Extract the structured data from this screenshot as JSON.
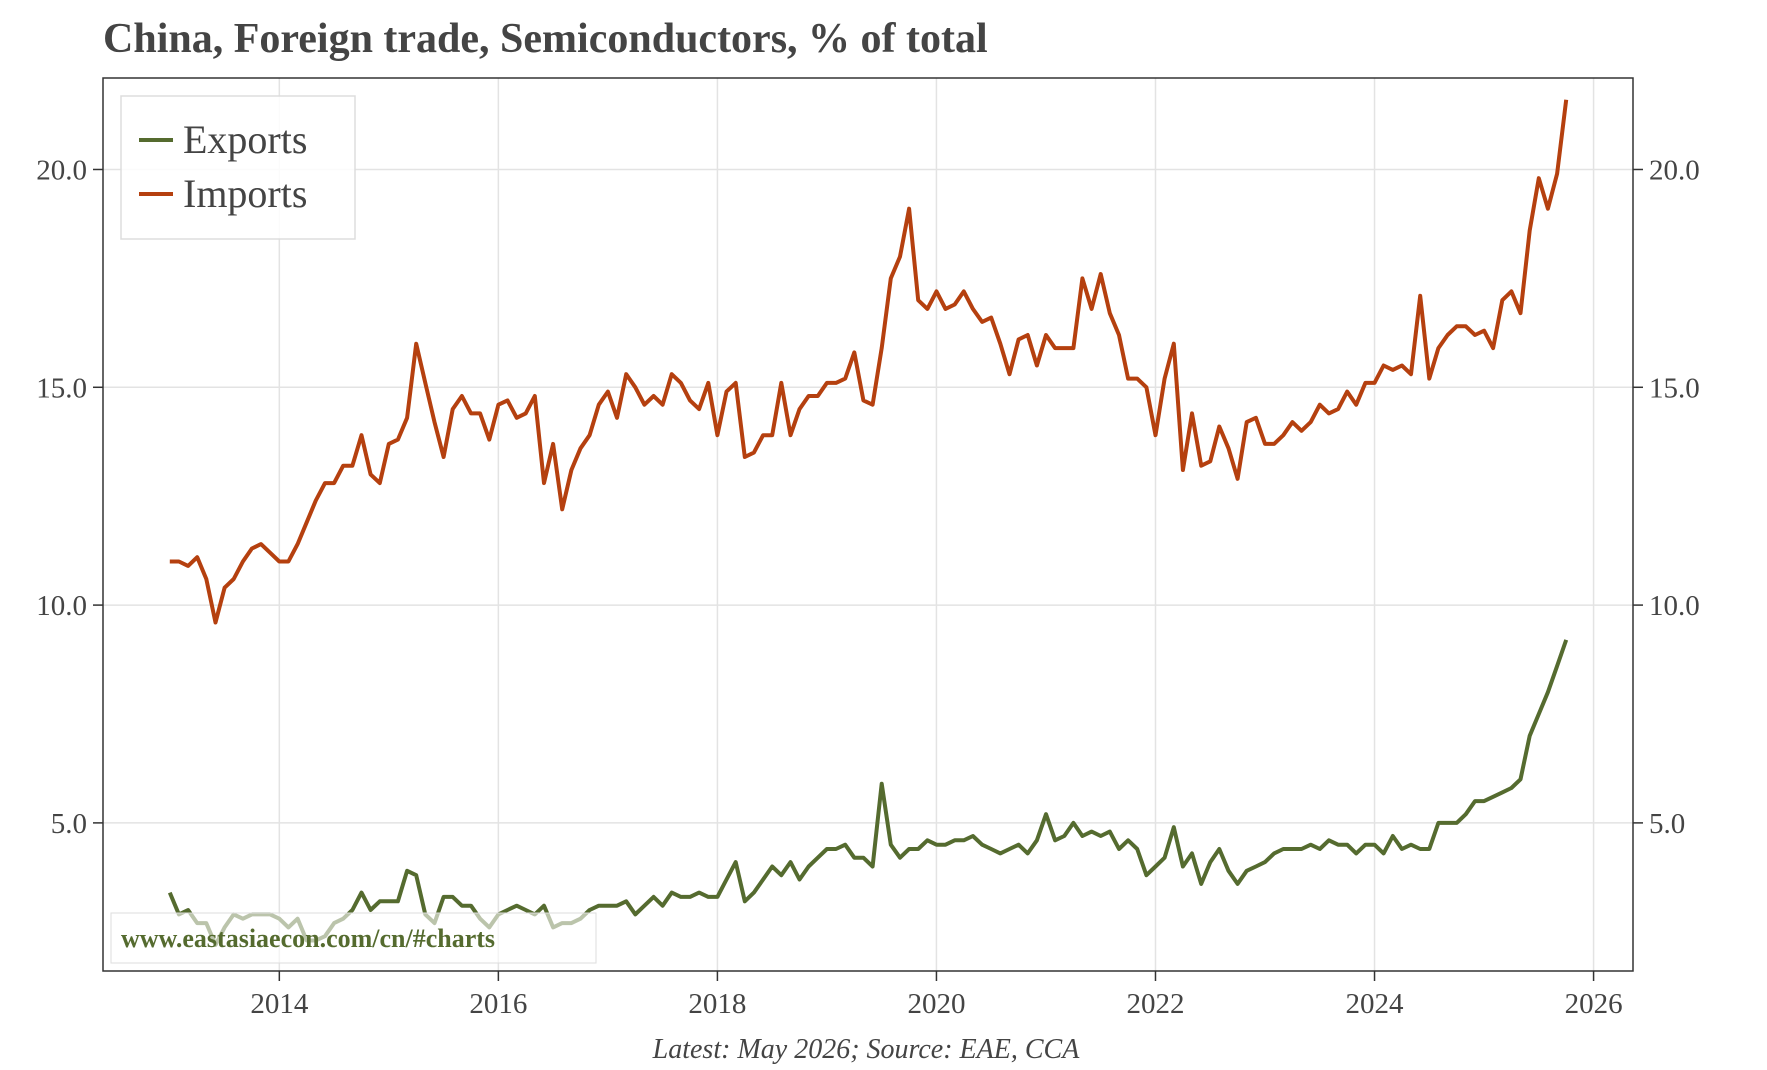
{
  "chart_data": {
    "type": "line",
    "title": "China, Foreign trade, Semiconductors, % of total",
    "footnote": "Latest: May 2026; Source: EAE, CCA",
    "watermark": "www.eastasiaecon.com/cn/#charts",
    "legend": "upper left",
    "grid": true,
    "xlim": [
      2012.39,
      2026.36
    ],
    "xticks": [
      2014,
      2016,
      2018,
      2020,
      2022,
      2024,
      2026
    ],
    "ylim": [
      1.6,
      22.1
    ],
    "yticks": [
      {
        "value": 5,
        "label": "5.0"
      },
      {
        "value": 10,
        "label": "10.0"
      },
      {
        "value": 15,
        "label": "15.0"
      },
      {
        "value": 20,
        "label": "20.0"
      }
    ],
    "y2lim": [
      1.6,
      22.1
    ],
    "y2ticks": [
      {
        "value": 5,
        "label": "5.0"
      },
      {
        "value": 10,
        "label": "10.0"
      },
      {
        "value": 15,
        "label": "15.0"
      },
      {
        "value": 20,
        "label": "20.0"
      }
    ],
    "x": [
      2013,
      2013.083,
      2013.167,
      2013.25,
      2013.333,
      2013.417,
      2013.5,
      2013.583,
      2013.667,
      2013.75,
      2013.833,
      2013.917,
      2014,
      2014.083,
      2014.167,
      2014.25,
      2014.333,
      2014.417,
      2014.5,
      2014.583,
      2014.667,
      2014.75,
      2014.833,
      2014.917,
      2015,
      2015.083,
      2015.167,
      2015.25,
      2015.333,
      2015.417,
      2015.5,
      2015.583,
      2015.667,
      2015.75,
      2015.833,
      2015.917,
      2016,
      2016.083,
      2016.167,
      2016.25,
      2016.333,
      2016.417,
      2016.5,
      2016.583,
      2016.667,
      2016.75,
      2016.833,
      2016.917,
      2017,
      2017.083,
      2017.167,
      2017.25,
      2017.333,
      2017.417,
      2017.5,
      2017.583,
      2017.667,
      2017.75,
      2017.833,
      2017.917,
      2018,
      2018.083,
      2018.167,
      2018.25,
      2018.333,
      2018.417,
      2018.5,
      2018.583,
      2018.667,
      2018.75,
      2018.833,
      2018.917,
      2019,
      2019.083,
      2019.167,
      2019.25,
      2019.333,
      2019.417,
      2019.5,
      2019.583,
      2019.667,
      2019.75,
      2019.833,
      2019.917,
      2020,
      2020.083,
      2020.167,
      2020.25,
      2020.333,
      2020.417,
      2020.5,
      2020.583,
      2020.667,
      2020.75,
      2020.833,
      2020.917,
      2021,
      2021.083,
      2021.167,
      2021.25,
      2021.333,
      2021.417,
      2021.5,
      2021.583,
      2021.667,
      2021.75,
      2021.833,
      2021.917,
      2022,
      2022.083,
      2022.167,
      2022.25,
      2022.333,
      2022.417,
      2022.5,
      2022.583,
      2022.667,
      2022.75,
      2022.833,
      2022.917,
      2023,
      2023.083,
      2023.167,
      2023.25,
      2023.333,
      2023.417,
      2023.5,
      2023.583,
      2023.667,
      2023.75,
      2023.833,
      2023.917,
      2024,
      2024.083,
      2024.167,
      2024.25,
      2024.333,
      2024.417,
      2024.5,
      2024.583,
      2024.667,
      2024.75,
      2024.833,
      2024.917,
      2025,
      2025.083,
      2025.167,
      2025.25,
      2025.333,
      2025.417,
      2025.5,
      2025.583,
      2025.667,
      2025.75
    ],
    "series": [
      {
        "name": "Exports",
        "color": "#556b2f",
        "values": [
          3.4,
          2.9,
          3.0,
          2.7,
          2.7,
          2.2,
          2.6,
          2.9,
          2.8,
          2.9,
          2.9,
          2.9,
          2.8,
          2.6,
          2.8,
          2.3,
          2.3,
          2.4,
          2.7,
          2.8,
          3.0,
          3.4,
          3.0,
          3.2,
          3.2,
          3.2,
          3.9,
          3.8,
          2.9,
          2.7,
          3.3,
          3.3,
          3.1,
          3.1,
          2.8,
          2.6,
          2.9,
          3.0,
          3.1,
          3.0,
          2.9,
          3.1,
          2.6,
          2.7,
          2.7,
          2.8,
          3.0,
          3.1,
          3.1,
          3.1,
          3.2,
          2.9,
          3.1,
          3.3,
          3.1,
          3.4,
          3.3,
          3.3,
          3.4,
          3.3,
          3.3,
          3.7,
          4.1,
          3.2,
          3.4,
          3.7,
          4.0,
          3.8,
          4.1,
          3.7,
          4.0,
          4.2,
          4.4,
          4.4,
          4.5,
          4.2,
          4.2,
          4.0,
          5.9,
          4.5,
          4.2,
          4.4,
          4.4,
          4.6,
          4.5,
          4.5,
          4.6,
          4.6,
          4.7,
          4.5,
          4.4,
          4.3,
          4.4,
          4.5,
          4.3,
          4.6,
          5.2,
          4.6,
          4.7,
          5.0,
          4.7,
          4.8,
          4.7,
          4.8,
          4.4,
          4.6,
          4.4,
          3.8,
          4.0,
          4.2,
          4.9,
          4.0,
          4.3,
          3.6,
          4.1,
          4.4,
          3.9,
          3.6,
          3.9,
          4.0,
          4.1,
          4.3,
          4.4,
          4.4,
          4.4,
          4.5,
          4.4,
          4.6,
          4.5,
          4.5,
          4.3,
          4.5,
          4.5,
          4.3,
          4.7,
          4.4,
          4.5,
          4.4,
          4.4,
          5.0,
          5.0,
          5.0,
          5.2,
          5.5,
          5.5,
          5.6,
          5.7,
          5.8,
          6.0,
          7.0,
          7.5,
          8.0,
          8.6,
          9.2
        ]
      },
      {
        "name": "Imports",
        "color": "#b5400f",
        "values": [
          11.0,
          11.0,
          10.9,
          11.1,
          10.6,
          9.6,
          10.4,
          10.6,
          11.0,
          11.3,
          11.4,
          11.2,
          11.0,
          11.0,
          11.4,
          11.9,
          12.4,
          12.8,
          12.8,
          13.2,
          13.2,
          13.9,
          13.0,
          12.8,
          13.7,
          13.8,
          14.3,
          16.0,
          15.1,
          14.2,
          13.4,
          14.5,
          14.8,
          14.4,
          14.4,
          13.8,
          14.6,
          14.7,
          14.3,
          14.4,
          14.8,
          12.8,
          13.7,
          12.2,
          13.1,
          13.6,
          13.9,
          14.6,
          14.9,
          14.3,
          15.3,
          15.0,
          14.6,
          14.8,
          14.6,
          15.3,
          15.1,
          14.7,
          14.5,
          15.1,
          13.9,
          14.9,
          15.1,
          13.4,
          13.5,
          13.9,
          13.9,
          15.1,
          13.9,
          14.5,
          14.8,
          14.8,
          15.1,
          15.1,
          15.2,
          15.8,
          14.7,
          14.6,
          15.9,
          17.5,
          18.0,
          19.1,
          17.0,
          16.8,
          17.2,
          16.8,
          16.9,
          17.2,
          16.8,
          16.5,
          16.6,
          16.0,
          15.3,
          16.1,
          16.2,
          15.5,
          16.2,
          15.9,
          15.9,
          15.9,
          17.5,
          16.8,
          17.6,
          16.7,
          16.2,
          15.2,
          15.2,
          15.0,
          13.9,
          15.2,
          16.0,
          13.1,
          14.4,
          13.2,
          13.3,
          14.1,
          13.6,
          12.9,
          14.2,
          14.3,
          13.7,
          13.7,
          13.9,
          14.2,
          14.0,
          14.2,
          14.6,
          14.4,
          14.5,
          14.9,
          14.6,
          15.1,
          15.1,
          15.5,
          15.4,
          15.5,
          15.3,
          17.1,
          15.2,
          15.9,
          16.2,
          16.4,
          16.4,
          16.2,
          16.3,
          15.9,
          17.0,
          17.2,
          16.7,
          18.6,
          19.8,
          19.1,
          19.9,
          21.6
        ]
      }
    ]
  }
}
